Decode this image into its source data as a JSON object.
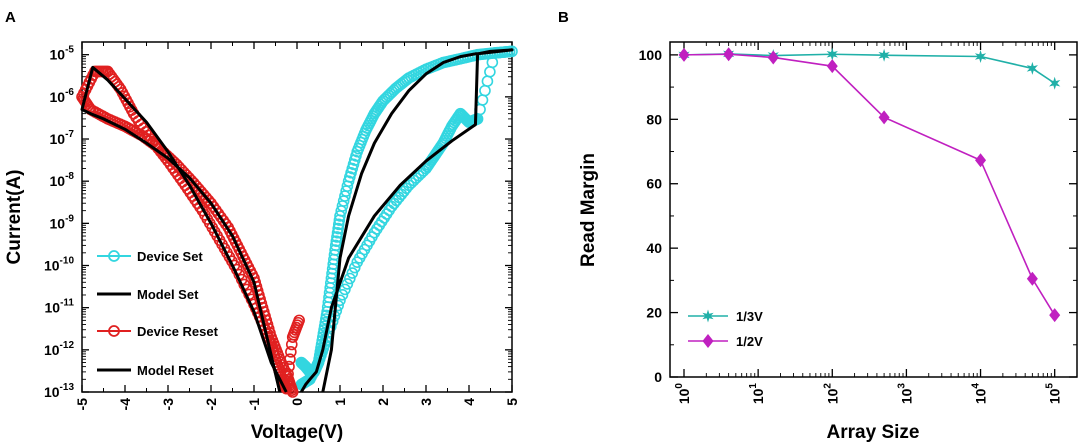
{
  "chart_data": [
    {
      "panel": "A",
      "type": "line",
      "xlabel": "Voltage(V)",
      "ylabel": "Current(A)",
      "x_scale": "linear",
      "y_scale": "log",
      "xlim": [
        -5,
        5
      ],
      "ylim": [
        1e-13,
        2e-05
      ],
      "x_ticks": [
        -5,
        -4,
        -3,
        -2,
        -1,
        0,
        1,
        2,
        3,
        4,
        5
      ],
      "x_tick_labels": [
        "-5",
        "-4",
        "-3",
        "-2",
        "-1",
        "0",
        "1",
        "2",
        "3",
        "4",
        "5"
      ],
      "y_ticks": [
        1e-13,
        1e-12,
        1e-11,
        1e-10,
        1e-09,
        1e-08,
        1e-07,
        1e-06,
        1e-05
      ],
      "y_tick_base": "10",
      "y_tick_exponents": [
        "-13",
        "-12",
        "-11",
        "-10",
        "-9",
        "-8",
        "-7",
        "-6",
        "-5"
      ],
      "legend_position": "lower-left",
      "series": [
        {
          "name": "Device Set",
          "color": "#33d6e0",
          "marker": "circle",
          "x": [
            0.1,
            0.2,
            0.3,
            0.4,
            0.5,
            0.6,
            0.7,
            0.8,
            0.9,
            1.0,
            1.2,
            1.4,
            1.6,
            1.8,
            2.0,
            2.3,
            2.6,
            3.0,
            3.4,
            3.8,
            4.2,
            4.6,
            5.0,
            4.6,
            4.2,
            4.0,
            3.8,
            3.6,
            3.4,
            3.2,
            3.0,
            2.6,
            2.2,
            1.8,
            1.4,
            1.0,
            0.7,
            0.5,
            0.3,
            0.1
          ],
          "y": [
            5e-13,
            4e-13,
            3e-13,
            3e-13,
            5e-13,
            2e-12,
            8e-12,
            5e-11,
            3e-10,
            1.5e-09,
            1e-08,
            5e-08,
            1.6e-07,
            4e-07,
            8e-07,
            1.6e-06,
            2.8e-06,
            4.5e-06,
            6.5e-06,
            8e-06,
            1e-05,
            1.1e-05,
            1.2e-05,
            1.1e-05,
            3e-07,
            2.5e-07,
            4e-07,
            2e-07,
            8e-08,
            4e-08,
            2e-08,
            8e-09,
            2.5e-09,
            6e-10,
            1.2e-10,
            1.5e-11,
            2e-12,
            5e-13,
            2e-13,
            1.5e-13
          ]
        },
        {
          "name": "Model Set",
          "color": "#000000",
          "marker": "none",
          "x": [
            0.6,
            0.8,
            1.0,
            1.2,
            1.5,
            1.8,
            2.2,
            2.6,
            3.0,
            3.4,
            3.8,
            4.15,
            4.2,
            4.5,
            5.0,
            4.2,
            4.15,
            3.6,
            3.0,
            2.4,
            1.8,
            1.2,
            0.8,
            0.6,
            0.45,
            0.3,
            0.2,
            0.1
          ],
          "y": [
            1e-13,
            1e-12,
            1.5e-10,
            1.5e-09,
            1.5e-08,
            8e-08,
            4e-07,
            1.4e-06,
            3.5e-06,
            6.5e-06,
            9e-06,
            1.05e-05,
            1.05e-05,
            1.2e-05,
            1.3e-05,
            1.05e-05,
            2.2e-07,
            9e-08,
            3e-08,
            8e-09,
            1.5e-09,
            1.5e-10,
            1e-11,
            1e-12,
            3e-13,
            2e-13,
            1.5e-13,
            1e-13
          ]
        },
        {
          "name": "Device Reset",
          "color": "#e02020",
          "marker": "circle",
          "x": [
            -0.1,
            -0.2,
            -0.4,
            -0.6,
            -0.8,
            -1.0,
            -1.3,
            -1.6,
            -2.0,
            -2.4,
            -2.8,
            -3.2,
            -3.6,
            -4.0,
            -4.4,
            -4.8,
            -5.0,
            -4.7,
            -4.4,
            -4.1,
            -3.8,
            -3.4,
            -3.0,
            -2.6,
            -2.2,
            -1.8,
            -1.4,
            -1.0,
            -0.7,
            -0.5,
            -0.35,
            -0.25,
            -0.1,
            0.05
          ],
          "y": [
            1e-13,
            2e-13,
            6e-13,
            2e-12,
            1e-11,
            5e-11,
            2e-10,
            8e-10,
            3e-09,
            9e-09,
            2.5e-08,
            6e-08,
            1.2e-07,
            2e-07,
            3e-07,
            5e-07,
            1e-06,
            4e-06,
            4e-06,
            1.5e-06,
            4e-07,
            1e-07,
            3e-08,
            8e-09,
            2e-09,
            4e-10,
            8e-11,
            1.2e-11,
            2.5e-12,
            6e-13,
            2e-13,
            1.2e-13,
            2e-12,
            5e-12
          ]
        },
        {
          "name": "Model Reset",
          "color": "#000000",
          "marker": "none",
          "x": [
            -0.4,
            -0.7,
            -1.0,
            -1.5,
            -2.0,
            -2.5,
            -3.0,
            -3.5,
            -4.0,
            -4.5,
            -4.75,
            -4.8,
            -5.0,
            -4.75,
            -4.4,
            -4.0,
            -3.5,
            -3.0,
            -2.5,
            -2.0,
            -1.5,
            -1.0,
            -0.6,
            -0.25
          ],
          "y": [
            1e-13,
            2e-12,
            4e-11,
            5e-10,
            3e-09,
            1.2e-08,
            3.5e-08,
            8e-08,
            1.7e-07,
            3e-07,
            3.8e-07,
            4e-07,
            5e-07,
            5e-06,
            2.5e-06,
            9e-07,
            2.5e-07,
            5e-08,
            8e-09,
            1e-09,
            1e-10,
            8e-12,
            5e-13,
            1e-13
          ]
        }
      ]
    },
    {
      "panel": "B",
      "type": "line",
      "xlabel": "Array Size",
      "ylabel": "Read Margin",
      "x_scale": "log",
      "y_scale": "linear",
      "xlim": [
        1,
        200000
      ],
      "ylim": [
        0,
        104
      ],
      "x_ticks": [
        1,
        10,
        100,
        1000,
        10000,
        100000
      ],
      "x_tick_base": "10",
      "x_tick_exponents": [
        "0",
        "1",
        "2",
        "3",
        "4",
        "5"
      ],
      "y_ticks": [
        0,
        20,
        40,
        60,
        80,
        100
      ],
      "y_tick_labels": [
        "0",
        "20",
        "40",
        "60",
        "80",
        "100"
      ],
      "legend_position": "lower-left",
      "series": [
        {
          "name": "1/3V",
          "color": "#20b0a8",
          "marker": "star",
          "x": [
            1,
            4,
            16,
            100,
            500,
            10000,
            50000,
            100000
          ],
          "y": [
            100,
            100.3,
            99.8,
            100.2,
            99.9,
            99.5,
            95.8,
            91.2
          ]
        },
        {
          "name": "1/2V",
          "color": "#c020c0",
          "marker": "diamond",
          "x": [
            1,
            4,
            16,
            100,
            500,
            10000,
            50000,
            100000
          ],
          "y": [
            100,
            100.2,
            99.2,
            96.5,
            80.6,
            67.3,
            30.5,
            19.2
          ]
        }
      ]
    }
  ]
}
